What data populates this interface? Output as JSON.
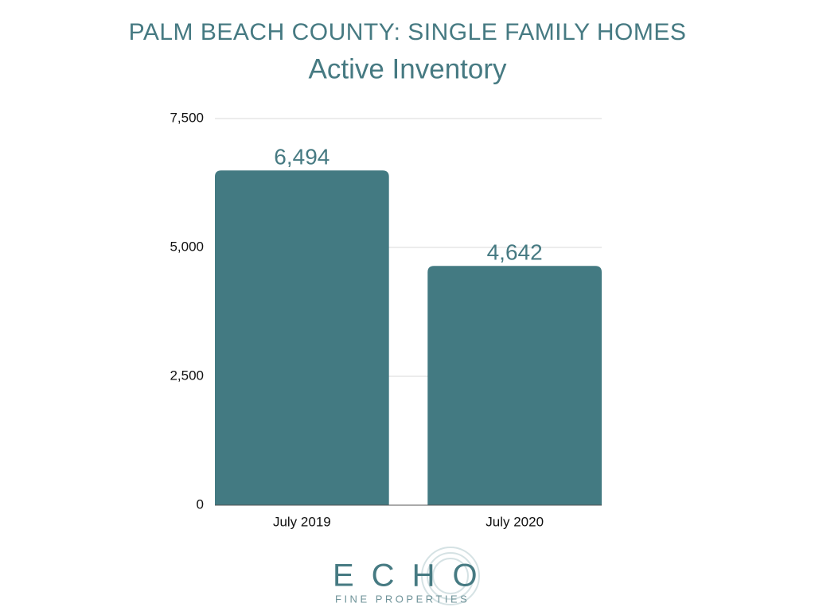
{
  "chart_data": {
    "type": "bar",
    "title": "PALM BEACH COUNTY: SINGLE FAMILY HOMES",
    "subtitle": "Active Inventory",
    "categories": [
      "July 2019",
      "July 2020"
    ],
    "values": [
      6494,
      4642
    ],
    "value_labels": [
      "6,494",
      "4,642"
    ],
    "color": "#437a82",
    "ylim": [
      0,
      7500
    ],
    "yticks": [
      0,
      {
        "value": 2500,
        "label": "2,500"
      },
      {
        "value": 5000,
        "label": "5,000"
      },
      {
        "value": 7500,
        "label": "7,500"
      }
    ],
    "grid": true
  },
  "logo": {
    "name": "ECHO",
    "tagline": "FINE PROPERTIES"
  }
}
